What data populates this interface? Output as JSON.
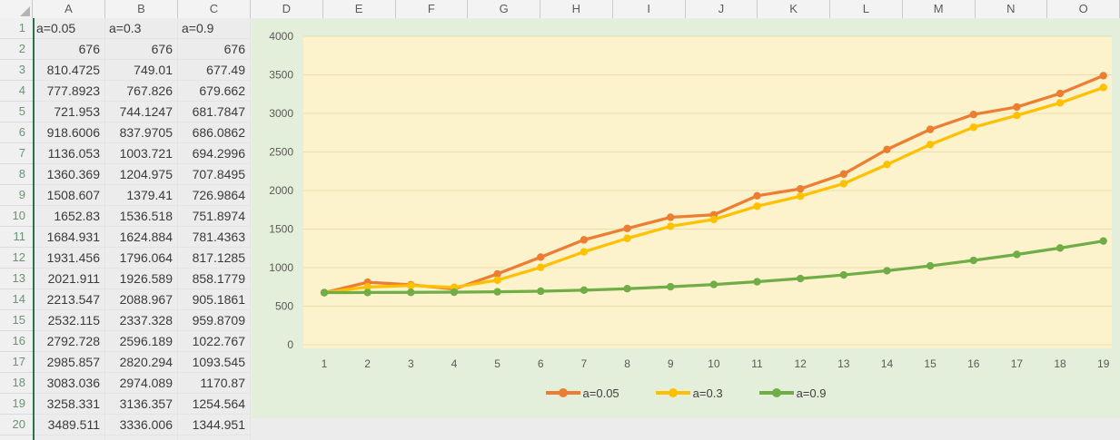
{
  "sheet": {
    "column_letters": [
      "A",
      "B",
      "C",
      "D",
      "E",
      "F",
      "G",
      "H",
      "I",
      "J",
      "K",
      "L",
      "M",
      "N",
      "O"
    ],
    "visible_rows": 21,
    "rows": [
      [
        "a=0.05",
        "a=0.3",
        "a=0.9"
      ],
      [
        "676",
        "676",
        "676"
      ],
      [
        "810.4725",
        "749.01",
        "677.49"
      ],
      [
        "777.8923",
        "767.826",
        "679.662"
      ],
      [
        "721.953",
        "744.1247",
        "681.7847"
      ],
      [
        "918.6006",
        "837.9705",
        "686.0862"
      ],
      [
        "1136.053",
        "1003.721",
        "694.2996"
      ],
      [
        "1360.369",
        "1204.975",
        "707.8495"
      ],
      [
        "1508.607",
        "1379.41",
        "726.9864"
      ],
      [
        "1652.83",
        "1536.518",
        "751.8974"
      ],
      [
        "1684.931",
        "1624.884",
        "781.4363"
      ],
      [
        "1931.456",
        "1796.064",
        "817.1285"
      ],
      [
        "2021.911",
        "1926.589",
        "858.1779"
      ],
      [
        "2213.547",
        "2088.967",
        "905.1861"
      ],
      [
        "2532.115",
        "2337.328",
        "959.8709"
      ],
      [
        "2792.728",
        "2596.189",
        "1022.767"
      ],
      [
        "2985.857",
        "2820.294",
        "1093.545"
      ],
      [
        "3083.036",
        "2974.089",
        "1170.87"
      ],
      [
        "3258.331",
        "3136.357",
        "1254.564"
      ],
      [
        "3489.511",
        "3336.006",
        "1344.951"
      ]
    ]
  },
  "chart_data": {
    "type": "line",
    "title": "",
    "x": [
      1,
      2,
      3,
      4,
      5,
      6,
      7,
      8,
      9,
      10,
      11,
      12,
      13,
      14,
      15,
      16,
      17,
      18,
      19
    ],
    "series": [
      {
        "name": "a=0.05",
        "color": "#ED7D31",
        "values": [
          676,
          810.4725,
          777.8923,
          721.953,
          918.6006,
          1136.053,
          1360.369,
          1508.607,
          1652.83,
          1684.931,
          1931.456,
          2021.911,
          2213.547,
          2532.115,
          2792.728,
          2985.857,
          3083.036,
          3258.331,
          3489.511
        ]
      },
      {
        "name": "a=0.3",
        "color": "#FFC000",
        "values": [
          676,
          749.01,
          767.826,
          744.1247,
          837.9705,
          1003.721,
          1204.975,
          1379.41,
          1536.518,
          1624.884,
          1796.064,
          1926.589,
          2088.967,
          2337.328,
          2596.189,
          2820.294,
          2974.089,
          3136.357,
          3336.006
        ]
      },
      {
        "name": "a=0.9",
        "color": "#70AD47",
        "values": [
          676,
          677.49,
          679.662,
          681.7847,
          686.0862,
          694.2996,
          707.8495,
          726.9864,
          751.8974,
          781.4363,
          817.1285,
          858.1779,
          905.1861,
          959.8709,
          1022.767,
          1093.545,
          1170.87,
          1254.564,
          1344.951
        ]
      }
    ],
    "ylim": [
      0,
      4000
    ],
    "yticks": [
      0,
      500,
      1000,
      1500,
      2000,
      2500,
      3000,
      3500,
      4000
    ],
    "grid": true,
    "legend_position": "bottom",
    "chart_bg": "#E3EFDA",
    "plot_bg": "#FCF2CC",
    "gridline_color": "#EBDDAF",
    "axis_text_color": "#595959"
  }
}
